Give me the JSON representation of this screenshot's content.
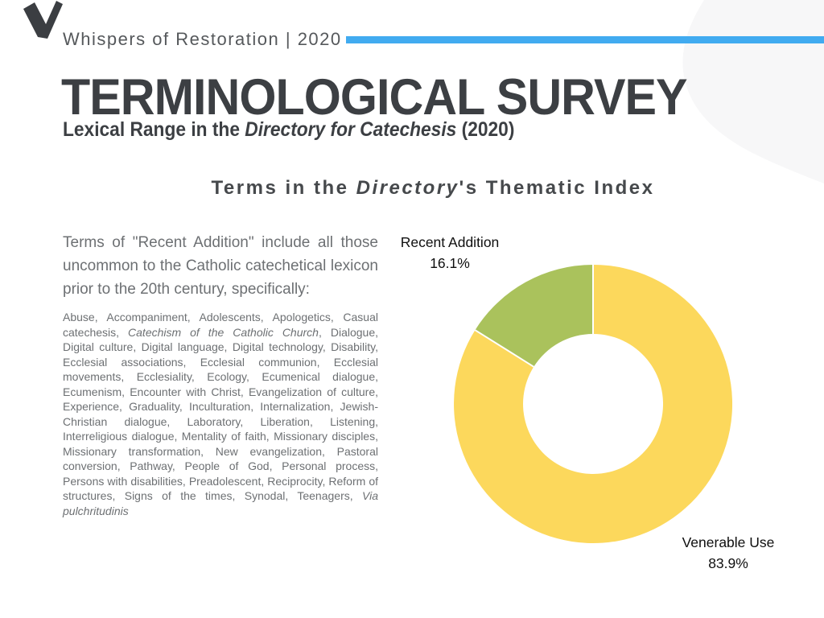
{
  "header": {
    "brand": "Whispers of Restoration | 2020",
    "accent_color": "#41ABF0"
  },
  "title": {
    "main": "TERMINOLOGICAL SURVEY",
    "sub_pre": "Lexical Range in the ",
    "sub_italic": "Directory for Catechesis",
    "sub_post": " (2020)"
  },
  "section_heading": {
    "pre": "Terms in the ",
    "italic": "Directory",
    "post": "'s Thematic Index"
  },
  "intro_paragraph": "Terms of \"Recent Addition\" include all those uncommon to the Catholic catechetical lexicon prior to the 20th century, specifically:",
  "terms_list": {
    "part1": "Abuse, Accompaniment, Adolescents, Apologetics, Casual catechesis, ",
    "italic1": "Catechism of the Catholic Church",
    "part2": ", Dialogue, Digital culture, Digital language, Digital technology, Disability, Ecclesial associations, Ecclesial communion, Ecclesial movements, Ecclesiality, Ecology, Ecumenical dialogue, Ecumenism, Encounter with Christ, Evangelization of culture, Experience, Graduality, Inculturation, Internalization, Jewish-Christian dialogue, Laboratory, Liberation, Listening, Interreligious dialogue, Mentality of faith, Missionary disciples, Missionary transformation, New evangelization, Pastoral conversion, Pathway, People of God, Personal process, Persons with disabilities, Preadolescent, Reciprocity, Reform of structures, Signs of the times, Synodal, Teenagers, ",
    "italic2": "Via pulchritudinis"
  },
  "chart_data": {
    "type": "pie",
    "title": "Terms in the Directory's Thematic Index",
    "donut": true,
    "hole_ratio": 0.5,
    "start_angle_deg": 0,
    "direction": "clockwise",
    "unit": "%",
    "legend_position": "none",
    "label_position": "outside",
    "slice_divider_color": "#FFFFFF",
    "slices": [
      {
        "label": "Venerable Use",
        "value": 83.9,
        "value_text": "83.9%",
        "color": "#FCD85C"
      },
      {
        "label": "Recent Addition",
        "value": 16.1,
        "value_text": "16.1%",
        "color": "#AAC25C"
      }
    ]
  },
  "decor": {
    "checkmark_color": "#3B3E42",
    "blob_color": "#F7F7F8"
  }
}
